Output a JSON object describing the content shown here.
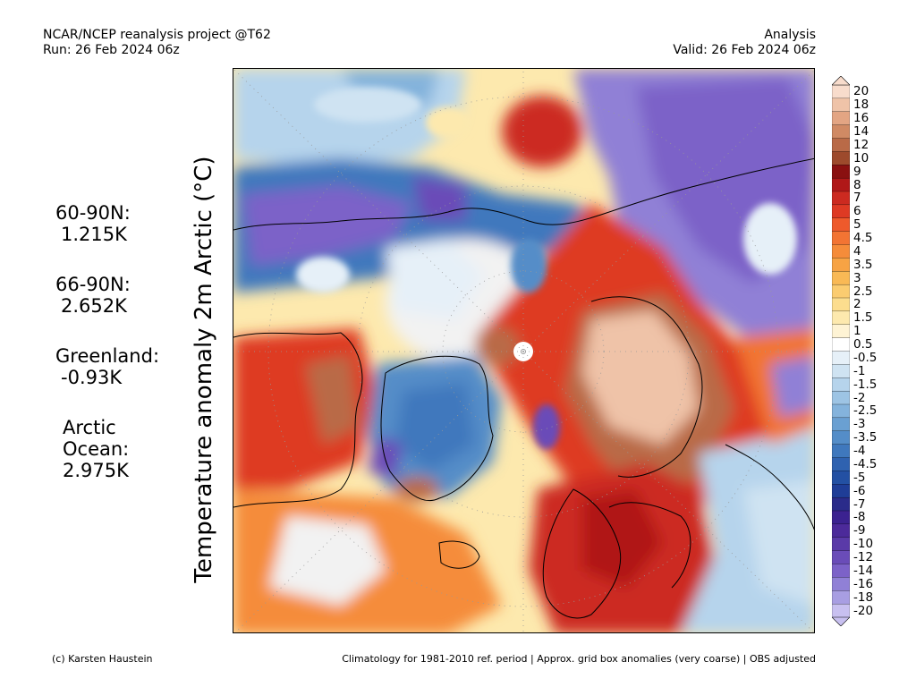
{
  "header": {
    "left": [
      "NCAR/NCEP reanalysis project @T62",
      "Run: 26 Feb 2024 06z"
    ],
    "right": [
      "Analysis",
      "Valid: 26 Feb 2024 06z"
    ]
  },
  "axis_label": "Temperature anomaly 2m Arctic (°C)",
  "stats": [
    {
      "label": "60-90N:",
      "value": "1.215K"
    },
    {
      "label": "66-90N:",
      "value": "2.652K"
    },
    {
      "label": "Greenland:",
      "value": "-0.93K"
    },
    {
      "label": "Arctic Ocean:",
      "value": "2.975K",
      "label_lines": [
        "Arctic",
        "Ocean:"
      ]
    }
  ],
  "colorbar": {
    "labels": [
      "20",
      "18",
      "16",
      "14",
      "12",
      "10",
      "9",
      "8",
      "7",
      "6",
      "5",
      "4.5",
      "4",
      "3.5",
      "3",
      "2.5",
      "2",
      "1.5",
      "1",
      "0.5",
      "-0.5",
      "-1",
      "-1.5",
      "-2",
      "-2.5",
      "-3",
      "-3.5",
      "-4",
      "-4.5",
      "-5",
      "-6",
      "-7",
      "-8",
      "-9",
      "-10",
      "-12",
      "-14",
      "-16",
      "-18",
      "-20"
    ],
    "colors": [
      "#f8dccc",
      "#efc3a8",
      "#e3a583",
      "#d08a64",
      "#b96a47",
      "#9d4a2c",
      "#8a1010",
      "#b01818",
      "#cc2a20",
      "#de3a24",
      "#ee5a2c",
      "#f27433",
      "#f58c3a",
      "#f7a344",
      "#f9b955",
      "#fbcc70",
      "#fcdd8e",
      "#fde9ae",
      "#fef3d4",
      "#ffffff",
      "#e6f0f8",
      "#cfe3f2",
      "#b6d4ec",
      "#9dc4e4",
      "#84b3dc",
      "#6aa0d2",
      "#548dc8",
      "#3f78bd",
      "#2f62b0",
      "#2350a3",
      "#1f3d97",
      "#2a2b8a",
      "#3b2290",
      "#4c2a9a",
      "#5a3aa8",
      "#6a4cb8",
      "#7c62c8",
      "#9080d6",
      "#a89ee2",
      "#c8c0f0"
    ]
  },
  "footer": {
    "left": "(c) Karsten Haustein",
    "right": "Climatology for 1981-2010 ref. period | Approx. grid box anomalies (very coarse) | OBS adjusted"
  }
}
